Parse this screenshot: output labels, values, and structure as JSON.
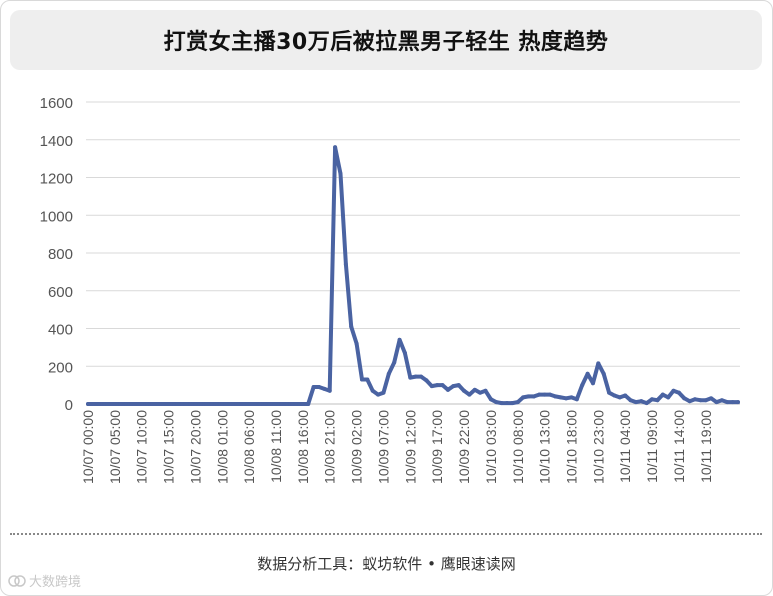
{
  "title": "打赏女主播30万后被拉黑男子轻生 热度趋势",
  "footer": {
    "tools_label": "数据分析工具：",
    "tool_1": "蚁坊软件",
    "separator": "•",
    "tool_2": "鹰眼速读网"
  },
  "watermark": {
    "text": "大数跨境"
  },
  "colors": {
    "line": "#4a63a2",
    "grid": "#d9d9d9",
    "axis_text": "#555555"
  },
  "chart_data": {
    "type": "line",
    "title": "打赏女主播30万后被拉黑男子轻生 热度趋势",
    "xlabel": "",
    "ylabel": "",
    "ylim": [
      0,
      1600
    ],
    "yticks": [
      0,
      200,
      400,
      600,
      800,
      1000,
      1200,
      1400,
      1600
    ],
    "grid": true,
    "legend": "none",
    "xticklabels": [
      "10/07 00:00",
      "10/07 05:00",
      "10/07 10:00",
      "10/07 15:00",
      "10/07 20:00",
      "10/08 01:00",
      "10/08 06:00",
      "10/08 11:00",
      "10/08 16:00",
      "10/08 21:00",
      "10/09 02:00",
      "10/09 07:00",
      "10/09 12:00",
      "10/09 17:00",
      "10/09 22:00",
      "10/10 03:00",
      "10/10 08:00",
      "10/10 13:00",
      "10/10 18:00",
      "10/10 23:00",
      "10/11 04:00",
      "10/11 09:00",
      "10/11 14:00",
      "10/11 19:00"
    ],
    "series": [
      {
        "name": "",
        "values": [
          0,
          0,
          0,
          0,
          0,
          0,
          0,
          0,
          0,
          0,
          0,
          0,
          0,
          0,
          0,
          0,
          0,
          0,
          0,
          0,
          0,
          0,
          0,
          0,
          0,
          0,
          0,
          0,
          0,
          0,
          0,
          0,
          0,
          0,
          0,
          0,
          0,
          0,
          0,
          0,
          0,
          0,
          90,
          90,
          80,
          70,
          1360,
          1220,
          740,
          410,
          320,
          130,
          130,
          70,
          50,
          60,
          160,
          220,
          340,
          270,
          140,
          145,
          145,
          125,
          95,
          100,
          100,
          75,
          95,
          100,
          70,
          50,
          75,
          60,
          70,
          25,
          10,
          5,
          5,
          5,
          10,
          35,
          40,
          40,
          50,
          50,
          50,
          40,
          35,
          30,
          35,
          25,
          100,
          160,
          110,
          215,
          160,
          60,
          45,
          35,
          45,
          20,
          10,
          15,
          5,
          25,
          20,
          50,
          35,
          70,
          60,
          30,
          15,
          25,
          20,
          20,
          30,
          10,
          20,
          10,
          10,
          10
        ]
      }
    ]
  }
}
